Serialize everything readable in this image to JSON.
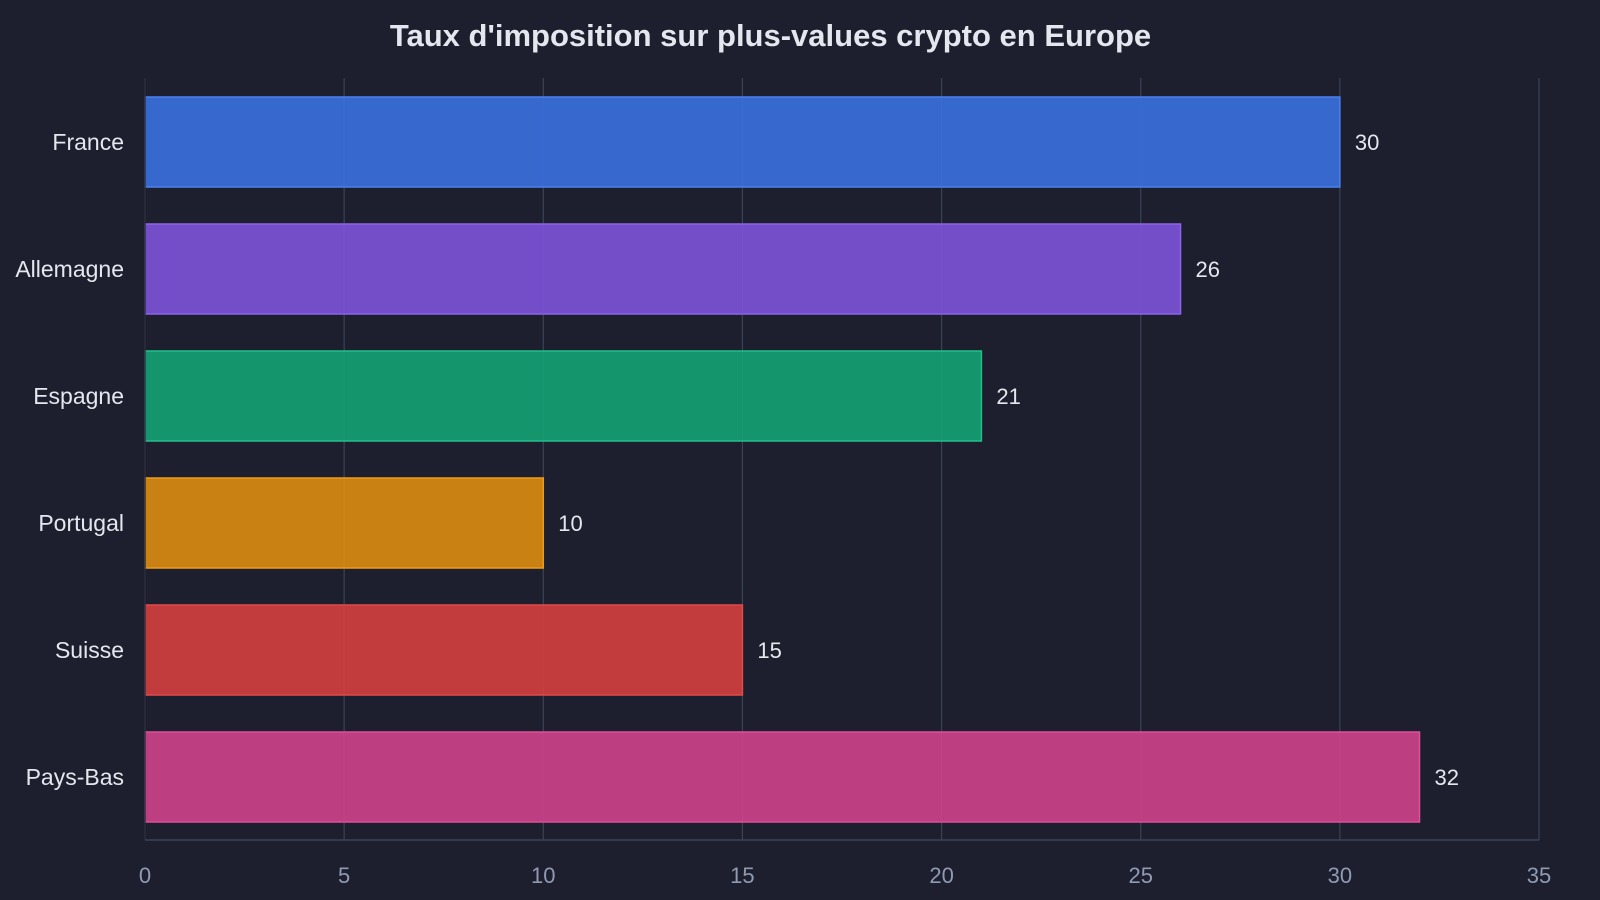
{
  "chart_data": {
    "type": "bar",
    "orientation": "horizontal",
    "title": "Taux d'imposition sur plus-values crypto en Europe",
    "xlabel": "",
    "ylabel": "",
    "categories": [
      "France",
      "Allemagne",
      "Espagne",
      "Portugal",
      "Suisse",
      "Pays-Bas"
    ],
    "values": [
      30,
      26,
      21,
      10,
      15,
      32
    ],
    "value_labels": [
      "30",
      "26",
      "21",
      "10",
      "15",
      "32"
    ],
    "xlim": [
      0,
      35
    ],
    "x_ticks": [
      0,
      5,
      10,
      15,
      20,
      25,
      30,
      35
    ],
    "x_tick_labels": [
      "0",
      "5",
      "10",
      "15",
      "20",
      "25",
      "30",
      "35"
    ],
    "grid": "vertical",
    "legend": "none",
    "colors": [
      "#3a6fdc",
      "#7b52d6",
      "#14a072",
      "#d98a12",
      "#d13f3f",
      "#cc418a"
    ],
    "edge_colors": [
      "#4a80f0",
      "#8c63ea",
      "#22c08a",
      "#f09a18",
      "#e24a4a",
      "#e04f9a"
    ],
    "background_color": "#1e1f2e",
    "grid_color": "#3a4356"
  }
}
